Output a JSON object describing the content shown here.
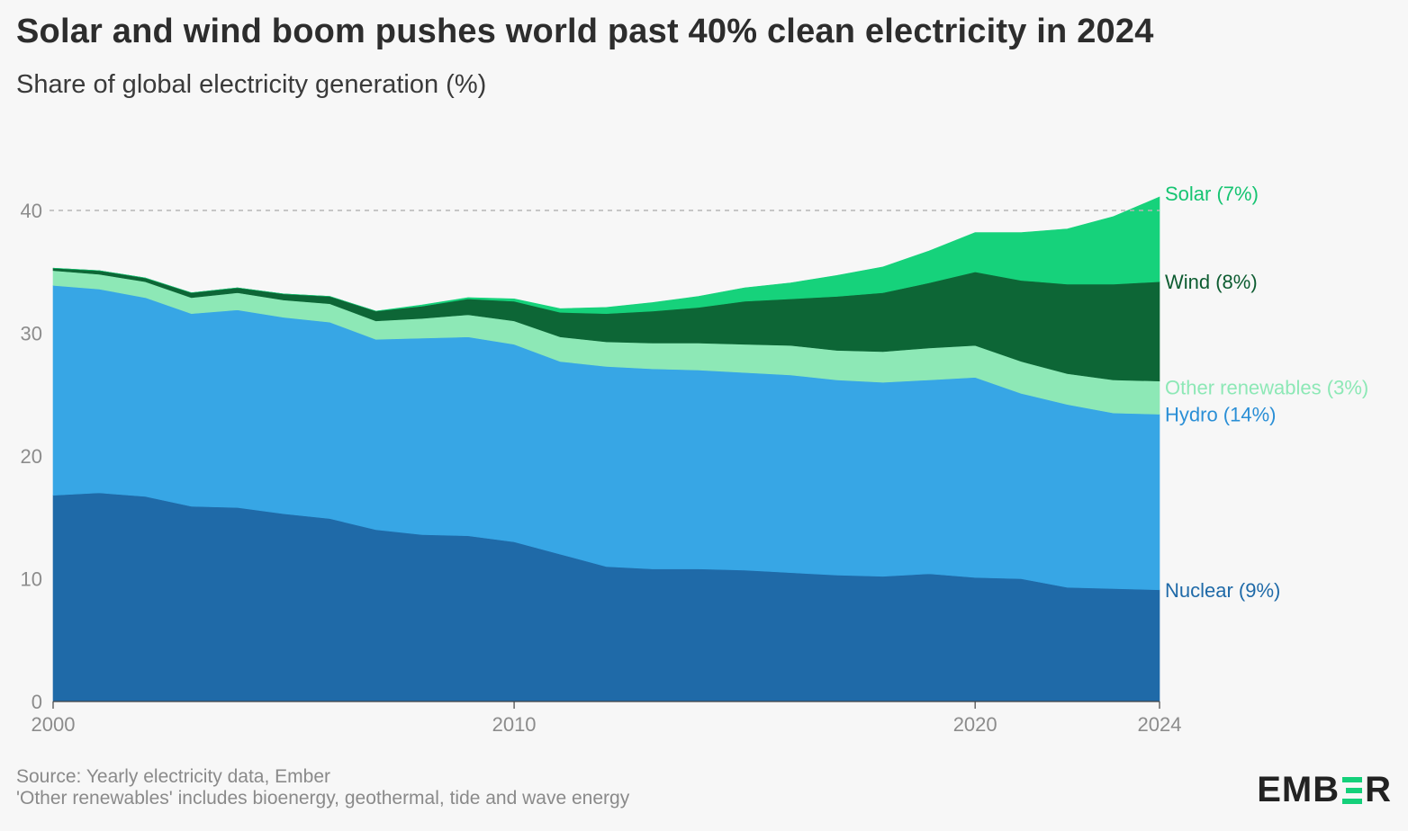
{
  "title": "Solar and wind boom pushes world past 40% clean electricity in 2024",
  "subtitle": "Share of global electricity generation (%)",
  "footer": {
    "source": "Source: Yearly electricity data, Ember",
    "note": "'Other renewables' includes bioenergy, geothermal, tide and wave energy"
  },
  "logo": {
    "text_left": "EMB",
    "text_right": "R",
    "accent": "#14d07a"
  },
  "chart_data": {
    "type": "area",
    "stacked": true,
    "x": [
      2000,
      2001,
      2002,
      2003,
      2004,
      2005,
      2006,
      2007,
      2008,
      2009,
      2010,
      2011,
      2012,
      2013,
      2014,
      2015,
      2016,
      2017,
      2018,
      2019,
      2020,
      2021,
      2022,
      2023,
      2024
    ],
    "x_ticks": [
      2000,
      2010,
      2020,
      2024
    ],
    "y_ticks": [
      0,
      10,
      20,
      30,
      40
    ],
    "ylim": [
      0,
      42
    ],
    "reference_line": 40,
    "series": [
      {
        "name": "Nuclear",
        "label": "Nuclear (9%)",
        "color": "#1f6aa8",
        "label_color": "#1f6aa8",
        "values": [
          16.8,
          17.0,
          16.7,
          15.9,
          15.8,
          15.3,
          14.9,
          14.0,
          13.6,
          13.5,
          13.0,
          12.0,
          11.0,
          10.8,
          10.8,
          10.7,
          10.5,
          10.3,
          10.2,
          10.4,
          10.1,
          10.0,
          9.3,
          9.2,
          9.1
        ]
      },
      {
        "name": "Hydro",
        "label": "Hydro (14%)",
        "color": "#37a6e5",
        "label_color": "#2a8fd6",
        "values": [
          17.1,
          16.6,
          16.2,
          15.7,
          16.1,
          16.0,
          16.0,
          15.5,
          16.0,
          16.2,
          16.1,
          15.7,
          16.3,
          16.3,
          16.2,
          16.1,
          16.1,
          15.9,
          15.8,
          15.8,
          16.3,
          15.1,
          14.9,
          14.3,
          14.3
        ]
      },
      {
        "name": "Other renewables",
        "label": "Other renewables (3%)",
        "color": "#8de8b6",
        "label_color": "#8de8b6",
        "values": [
          1.2,
          1.2,
          1.3,
          1.3,
          1.4,
          1.4,
          1.5,
          1.5,
          1.6,
          1.8,
          1.9,
          2.0,
          2.0,
          2.1,
          2.2,
          2.3,
          2.4,
          2.4,
          2.5,
          2.6,
          2.6,
          2.6,
          2.5,
          2.7,
          2.7
        ]
      },
      {
        "name": "Wind",
        "label": "Wind (8%)",
        "color": "#0d6636",
        "label_color": "#0d5c31",
        "values": [
          0.2,
          0.3,
          0.3,
          0.4,
          0.4,
          0.5,
          0.6,
          0.8,
          1.0,
          1.3,
          1.6,
          2.0,
          2.3,
          2.6,
          2.9,
          3.5,
          3.8,
          4.4,
          4.8,
          5.3,
          6.0,
          6.6,
          7.3,
          7.8,
          8.1
        ]
      },
      {
        "name": "Solar",
        "label": "Solar (7%)",
        "color": "#16d27b",
        "label_color": "#16c472",
        "values": [
          0.0,
          0.0,
          0.0,
          0.0,
          0.0,
          0.0,
          0.0,
          0.0,
          0.1,
          0.1,
          0.2,
          0.3,
          0.5,
          0.7,
          0.9,
          1.1,
          1.3,
          1.7,
          2.1,
          2.6,
          3.2,
          3.9,
          4.5,
          5.5,
          6.9
        ]
      }
    ]
  }
}
